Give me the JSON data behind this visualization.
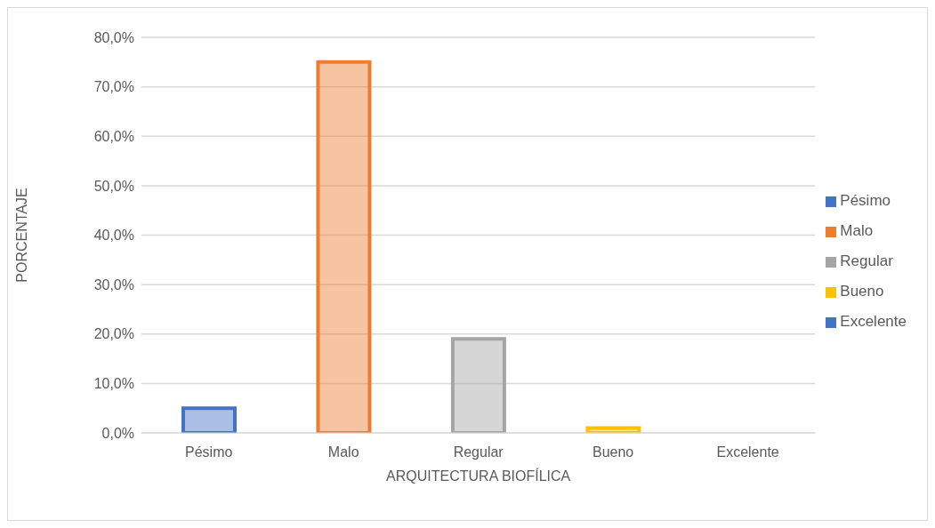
{
  "chart_data": {
    "type": "bar",
    "xlabel": "ARQUITECTURA BIOFÍLICA",
    "ylabel": "PORCENTAJE",
    "stacked": true,
    "categories": [
      "Pésimo",
      "Malo",
      "Regular",
      "Bueno",
      "Excelente"
    ],
    "series": [
      {
        "name": "Pésimo",
        "color": "#4472c4",
        "values": [
          5,
          null,
          null,
          null,
          null
        ]
      },
      {
        "name": "Malo",
        "color": "#ed7d31",
        "values": [
          null,
          75,
          null,
          null,
          null
        ]
      },
      {
        "name": "Regular",
        "color": "#a5a5a5",
        "values": [
          null,
          null,
          19,
          null,
          null
        ]
      },
      {
        "name": "Bueno",
        "color": "#ffc000",
        "values": [
          null,
          null,
          null,
          1,
          null
        ]
      },
      {
        "name": "Excelente",
        "color": "#4472c4",
        "values": [
          null,
          null,
          null,
          null,
          0
        ]
      }
    ],
    "ylim": [
      0,
      80
    ],
    "yticks": [
      {
        "value": 0,
        "label": "0,0%"
      },
      {
        "value": 10,
        "label": "10,0%"
      },
      {
        "value": 20,
        "label": "20,0%"
      },
      {
        "value": 30,
        "label": "30,0%"
      },
      {
        "value": 40,
        "label": "40,0%"
      },
      {
        "value": 50,
        "label": "50,0%"
      },
      {
        "value": 60,
        "label": "60,0%"
      },
      {
        "value": 70,
        "label": "70,0%"
      },
      {
        "value": 80,
        "label": "80,0%"
      }
    ],
    "grid": "y",
    "legend": "right"
  }
}
